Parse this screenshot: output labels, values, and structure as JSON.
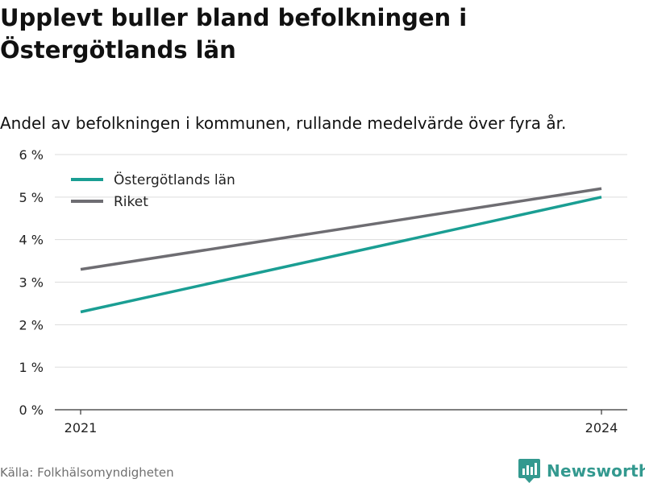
{
  "title": "Upplevt buller bland befolkningen i Östergötlands län",
  "subtitle": "Andel av befolkningen i kommunen, rullande medelvärde över fyra år.",
  "source": "Källa: Folkhälsomyndigheten",
  "brand": "Newsworthy",
  "colors": {
    "series_primary": "#1a9e93",
    "series_secondary": "#6e6d72",
    "brand": "#33998f"
  },
  "chart_data": {
    "type": "line",
    "x": [
      2021,
      2024
    ],
    "x_tick_labels": [
      "2021",
      "2024"
    ],
    "y_tick_values": [
      0,
      1,
      2,
      3,
      4,
      5,
      6
    ],
    "y_tick_labels": [
      "0 %",
      "1 %",
      "2 %",
      "3 %",
      "4 %",
      "5 %",
      "6 %"
    ],
    "ylim": [
      0,
      6
    ],
    "grid": true,
    "legend_position": "top-left",
    "series": [
      {
        "name": "Östergötlands län",
        "values": [
          2.3,
          5.0
        ],
        "color": "#1a9e93"
      },
      {
        "name": "Riket",
        "values": [
          3.3,
          5.2
        ],
        "color": "#6e6d72"
      }
    ]
  }
}
